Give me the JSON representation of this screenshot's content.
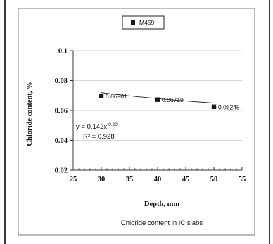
{
  "chart_data": {
    "type": "scatter",
    "title": "",
    "xlabel": "Depth, mm",
    "ylabel": "Chloride content, %",
    "xlim": [
      25,
      55
    ],
    "ylim": [
      0.02,
      0.1
    ],
    "x_ticks": [
      "25",
      "30",
      "35",
      "40",
      "45",
      "50",
      "55"
    ],
    "y_ticks": [
      "0.02",
      "0.04",
      "0.06",
      "0.08",
      "0.1"
    ],
    "grid": "horizontal",
    "legend_position": "top-center",
    "series": [
      {
        "name": "M459",
        "x": [
          30,
          40,
          50
        ],
        "y": [
          0.06961,
          0.06719,
          0.06245
        ],
        "labels": [
          "0.06961",
          "0.06719",
          "0.06245"
        ],
        "marker_color": "#1a1a1a"
      }
    ],
    "trendline": {
      "type": "power",
      "a": 0.142,
      "b": -0.2,
      "equation_base": "y = 0.142x",
      "equation_exp": "-0.20",
      "r2_label": "R² = 0.928"
    },
    "caption": "Chloride content in IC slabs"
  }
}
